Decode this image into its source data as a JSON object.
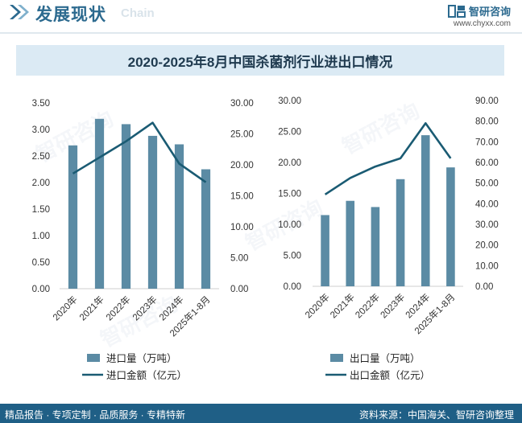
{
  "header": {
    "title": "发展现状",
    "subtitle": "Chain"
  },
  "brand": {
    "name": "智研咨询",
    "url": "www.chyxx.com"
  },
  "footer": {
    "left": "精品报告 · 专项定制 · 品质服务 · 专精特新",
    "right": "资料来源：中国海关、智研咨询整理"
  },
  "colors": {
    "bar": "#5b8ba4",
    "line": "#1a5b73",
    "band": "#dbeaf4",
    "accent": "#2c6a8f"
  },
  "chart_data": {
    "title": "2020-2025年8月中国杀菌剂行业进出口情况",
    "type": "bar",
    "charts": [
      {
        "name": "import",
        "categories": [
          "2020年",
          "2021年",
          "2022年",
          "2023年",
          "2024年",
          "2025年1-8月"
        ],
        "bar_series": {
          "name": "进口量（万吨）",
          "values": [
            2.7,
            3.2,
            3.1,
            2.88,
            2.72,
            2.25
          ]
        },
        "line_series": {
          "name": "进口金额（亿元）",
          "values": [
            18.6,
            21.2,
            23.8,
            26.8,
            20.2,
            17.2
          ]
        },
        "left_axis": {
          "min": 0,
          "max": 3.5,
          "ticks": [
            "0.00",
            "0.50",
            "1.00",
            "1.50",
            "2.00",
            "2.50",
            "3.00",
            "3.50"
          ]
        },
        "right_axis": {
          "min": 0,
          "max": 30,
          "ticks": [
            "0.00",
            "5.00",
            "10.00",
            "15.00",
            "20.00",
            "25.00",
            "30.00"
          ]
        }
      },
      {
        "name": "export",
        "categories": [
          "2020年",
          "2021年",
          "2022年",
          "2023年",
          "2024年",
          "2025年1-8月"
        ],
        "bar_series": {
          "name": "出口量（万吨）",
          "values": [
            11.5,
            13.8,
            12.8,
            17.3,
            24.4,
            19.2
          ]
        },
        "line_series": {
          "name": "出口金额（亿元）",
          "values": [
            44.5,
            52.5,
            58.0,
            62.0,
            79.0,
            62.0
          ]
        },
        "left_axis": {
          "min": 0,
          "max": 30,
          "ticks": [
            "0.00",
            "5.00",
            "10.00",
            "15.00",
            "20.00",
            "25.00",
            "30.00"
          ]
        },
        "right_axis": {
          "min": 0,
          "max": 90,
          "ticks": [
            "0.00",
            "10.00",
            "20.00",
            "30.00",
            "40.00",
            "50.00",
            "60.00",
            "70.00",
            "80.00",
            "90.00"
          ]
        }
      }
    ]
  }
}
